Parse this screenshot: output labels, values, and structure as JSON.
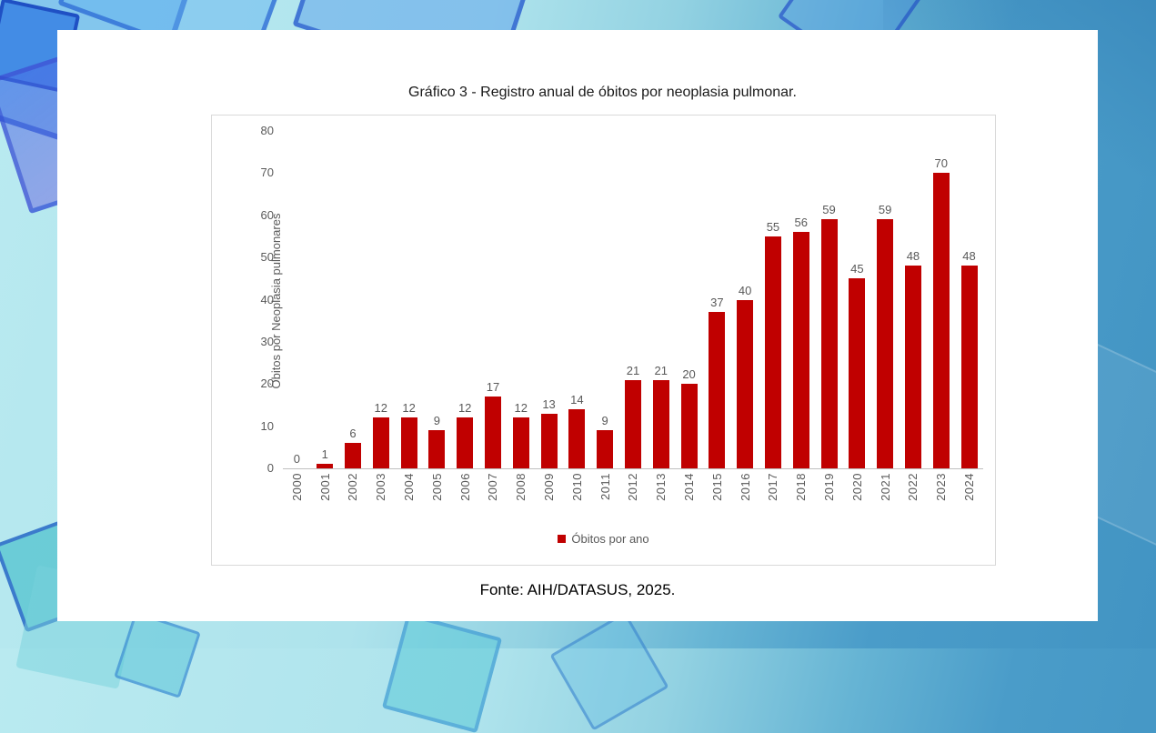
{
  "slide": {
    "title": "Gráfico 3 - Registro anual de óbitos por neoplasia pulmonar.",
    "source": "Fonte: AIH/DATASUS, 2025."
  },
  "chart_data": {
    "type": "bar",
    "title": "Gráfico 3 - Registro anual de óbitos por neoplasia pulmonar.",
    "categories": [
      "2000",
      "2001",
      "2002",
      "2003",
      "2004",
      "2005",
      "2006",
      "2007",
      "2008",
      "2009",
      "2010",
      "2011",
      "2012",
      "2013",
      "2014",
      "2015",
      "2016",
      "2017",
      "2018",
      "2019",
      "2020",
      "2021",
      "2022",
      "2023",
      "2024"
    ],
    "values": [
      0,
      1,
      6,
      12,
      12,
      9,
      12,
      17,
      12,
      13,
      14,
      9,
      21,
      21,
      20,
      37,
      40,
      55,
      56,
      59,
      45,
      59,
      48,
      70,
      48
    ],
    "xlabel": "",
    "ylabel": "Óbitos por Neoplasia pulmonares",
    "ylim": [
      0,
      80
    ],
    "yticks": [
      0,
      10,
      20,
      30,
      40,
      50,
      60,
      70,
      80
    ],
    "grid": false,
    "data_labels": true,
    "bar_color": "#C00000",
    "legend": {
      "label": "Óbitos por ano",
      "position": "bottom"
    }
  },
  "colors": {
    "bar": "#C00000",
    "label_text": "#595959",
    "chart_border": "#d9d9d9",
    "axis_line": "#bfbfbf",
    "slide_bg": "#ffffff",
    "page_bg_left": "#aee3ec",
    "page_bg_right": "#4294c3"
  }
}
